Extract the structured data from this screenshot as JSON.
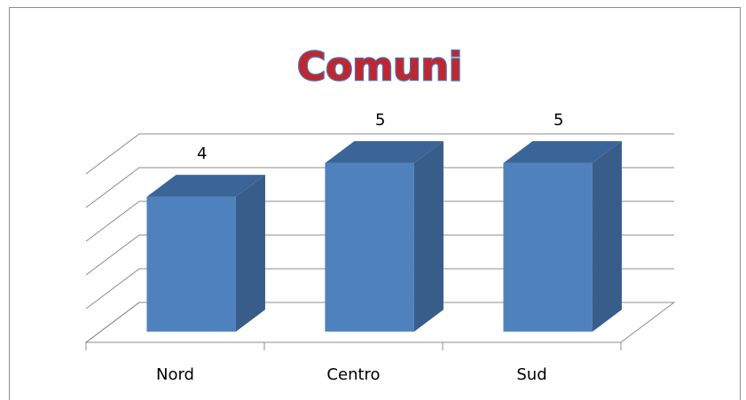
{
  "chart_data": {
    "type": "bar",
    "title": "Comuni",
    "categories": [
      "Nord",
      "Centro",
      "Sud"
    ],
    "values": [
      4,
      5,
      5
    ],
    "color": "#4f81bd",
    "ylim": [
      0,
      5
    ],
    "yticks": [
      0,
      1,
      2,
      3,
      4,
      5
    ],
    "grid": true
  }
}
